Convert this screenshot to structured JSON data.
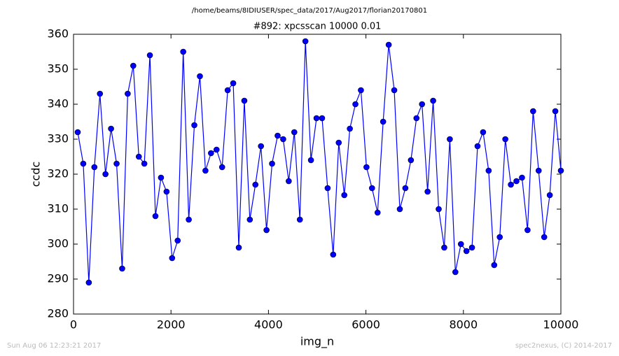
{
  "chart_data": {
    "type": "line",
    "suptitle": "/home/beams/8IDIUSER/spec_data/2017/Aug2017/florian20170801",
    "title": "#892: xpcsscan 10000 0.01",
    "xlabel": "img_n",
    "ylabel": "ccdc",
    "footer_left": "Sun Aug 06 12:23:21 2017",
    "footer_right": "spec2nexus, (C) 2014-2017",
    "xlim": [
      0,
      10000
    ],
    "xticks": [
      0,
      2000,
      4000,
      6000,
      8000,
      10000
    ],
    "ylim": [
      280,
      360
    ],
    "yticks": [
      280,
      290,
      300,
      310,
      320,
      330,
      340,
      350,
      360
    ],
    "grid": false,
    "x": [
      86,
      200,
      314,
      428,
      542,
      656,
      770,
      884,
      998,
      1112,
      1226,
      1340,
      1453,
      1567,
      1681,
      1795,
      1909,
      2023,
      2137,
      2251,
      2365,
      2479,
      2593,
      2707,
      2821,
      2935,
      3049,
      3163,
      3277,
      3391,
      3505,
      3618,
      3732,
      3846,
      3960,
      4074,
      4188,
      4302,
      4416,
      4530,
      4644,
      4758,
      4872,
      4986,
      5100,
      5214,
      5328,
      5442,
      5556,
      5670,
      5784,
      5897,
      6011,
      6125,
      6239,
      6353,
      6467,
      6581,
      6695,
      6809,
      6923,
      7037,
      7151,
      7265,
      7379,
      7493,
      7607,
      7721,
      7835,
      7949,
      8063,
      8176,
      8290,
      8404,
      8518,
      8632,
      8746,
      8860,
      8974,
      9088,
      9202,
      9316,
      9430,
      9544,
      9658,
      9772,
      9886,
      10000
    ],
    "series": [
      {
        "color": "#0000ff",
        "values": [
          332,
          323,
          289,
          322,
          343,
          320,
          333,
          323,
          293,
          343,
          351,
          325,
          323,
          354,
          308,
          319,
          315,
          296,
          301,
          355,
          307,
          334,
          348,
          321,
          326,
          327,
          322,
          344,
          346,
          299,
          341,
          307,
          317,
          328,
          304,
          323,
          331,
          330,
          318,
          332,
          307,
          358,
          324,
          336,
          336,
          316,
          297,
          329,
          314,
          333,
          340,
          344,
          322,
          316,
          309,
          335,
          357,
          344,
          310,
          316,
          324,
          336,
          340,
          315,
          341,
          310,
          299,
          330,
          292,
          300,
          298,
          299,
          328,
          332,
          321,
          294,
          302,
          330,
          317,
          318,
          319,
          304,
          338,
          321,
          302,
          314,
          338,
          321
        ]
      }
    ]
  }
}
